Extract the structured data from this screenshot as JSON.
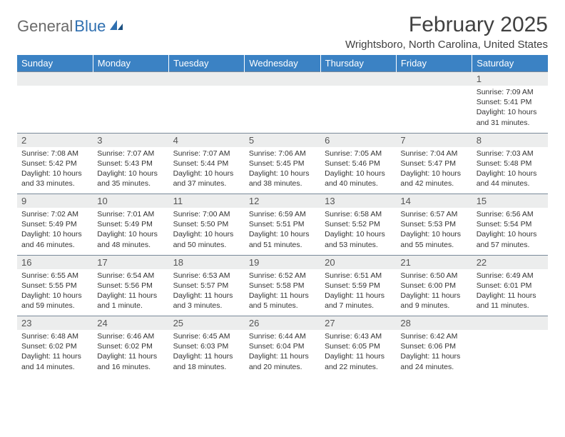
{
  "logo": {
    "text1": "General",
    "text2": "Blue",
    "color1": "#6a6a6a",
    "color2": "#2f6fb0"
  },
  "title": "February 2025",
  "location": "Wrightsboro, North Carolina, United States",
  "colors": {
    "header_bg": "#3b82c4",
    "header_text": "#ffffff",
    "daynum_bg": "#eceded",
    "cell_border": "#7a8a9a",
    "text": "#333333",
    "title_text": "#404040"
  },
  "fonts": {
    "title_size": 30,
    "location_size": 15,
    "dayhead_size": 13,
    "body_size": 10.5
  },
  "day_names": [
    "Sunday",
    "Monday",
    "Tuesday",
    "Wednesday",
    "Thursday",
    "Friday",
    "Saturday"
  ],
  "weeks": [
    [
      null,
      null,
      null,
      null,
      null,
      null,
      {
        "n": "1",
        "sr": "7:09 AM",
        "ss": "5:41 PM",
        "dl": "10 hours and 31 minutes."
      }
    ],
    [
      {
        "n": "2",
        "sr": "7:08 AM",
        "ss": "5:42 PM",
        "dl": "10 hours and 33 minutes."
      },
      {
        "n": "3",
        "sr": "7:07 AM",
        "ss": "5:43 PM",
        "dl": "10 hours and 35 minutes."
      },
      {
        "n": "4",
        "sr": "7:07 AM",
        "ss": "5:44 PM",
        "dl": "10 hours and 37 minutes."
      },
      {
        "n": "5",
        "sr": "7:06 AM",
        "ss": "5:45 PM",
        "dl": "10 hours and 38 minutes."
      },
      {
        "n": "6",
        "sr": "7:05 AM",
        "ss": "5:46 PM",
        "dl": "10 hours and 40 minutes."
      },
      {
        "n": "7",
        "sr": "7:04 AM",
        "ss": "5:47 PM",
        "dl": "10 hours and 42 minutes."
      },
      {
        "n": "8",
        "sr": "7:03 AM",
        "ss": "5:48 PM",
        "dl": "10 hours and 44 minutes."
      }
    ],
    [
      {
        "n": "9",
        "sr": "7:02 AM",
        "ss": "5:49 PM",
        "dl": "10 hours and 46 minutes."
      },
      {
        "n": "10",
        "sr": "7:01 AM",
        "ss": "5:49 PM",
        "dl": "10 hours and 48 minutes."
      },
      {
        "n": "11",
        "sr": "7:00 AM",
        "ss": "5:50 PM",
        "dl": "10 hours and 50 minutes."
      },
      {
        "n": "12",
        "sr": "6:59 AM",
        "ss": "5:51 PM",
        "dl": "10 hours and 51 minutes."
      },
      {
        "n": "13",
        "sr": "6:58 AM",
        "ss": "5:52 PM",
        "dl": "10 hours and 53 minutes."
      },
      {
        "n": "14",
        "sr": "6:57 AM",
        "ss": "5:53 PM",
        "dl": "10 hours and 55 minutes."
      },
      {
        "n": "15",
        "sr": "6:56 AM",
        "ss": "5:54 PM",
        "dl": "10 hours and 57 minutes."
      }
    ],
    [
      {
        "n": "16",
        "sr": "6:55 AM",
        "ss": "5:55 PM",
        "dl": "10 hours and 59 minutes."
      },
      {
        "n": "17",
        "sr": "6:54 AM",
        "ss": "5:56 PM",
        "dl": "11 hours and 1 minute."
      },
      {
        "n": "18",
        "sr": "6:53 AM",
        "ss": "5:57 PM",
        "dl": "11 hours and 3 minutes."
      },
      {
        "n": "19",
        "sr": "6:52 AM",
        "ss": "5:58 PM",
        "dl": "11 hours and 5 minutes."
      },
      {
        "n": "20",
        "sr": "6:51 AM",
        "ss": "5:59 PM",
        "dl": "11 hours and 7 minutes."
      },
      {
        "n": "21",
        "sr": "6:50 AM",
        "ss": "6:00 PM",
        "dl": "11 hours and 9 minutes."
      },
      {
        "n": "22",
        "sr": "6:49 AM",
        "ss": "6:01 PM",
        "dl": "11 hours and 11 minutes."
      }
    ],
    [
      {
        "n": "23",
        "sr": "6:48 AM",
        "ss": "6:02 PM",
        "dl": "11 hours and 14 minutes."
      },
      {
        "n": "24",
        "sr": "6:46 AM",
        "ss": "6:02 PM",
        "dl": "11 hours and 16 minutes."
      },
      {
        "n": "25",
        "sr": "6:45 AM",
        "ss": "6:03 PM",
        "dl": "11 hours and 18 minutes."
      },
      {
        "n": "26",
        "sr": "6:44 AM",
        "ss": "6:04 PM",
        "dl": "11 hours and 20 minutes."
      },
      {
        "n": "27",
        "sr": "6:43 AM",
        "ss": "6:05 PM",
        "dl": "11 hours and 22 minutes."
      },
      {
        "n": "28",
        "sr": "6:42 AM",
        "ss": "6:06 PM",
        "dl": "11 hours and 24 minutes."
      },
      null
    ]
  ],
  "labels": {
    "sunrise": "Sunrise:",
    "sunset": "Sunset:",
    "daylight": "Daylight:"
  }
}
